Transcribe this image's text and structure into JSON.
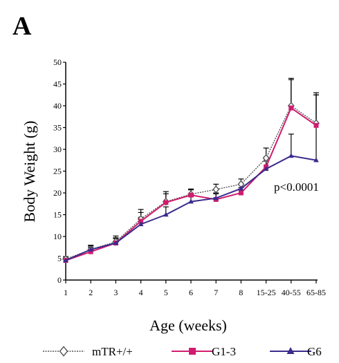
{
  "panel_label": "A",
  "colors": {
    "mTR": "#555555",
    "G13": "#d01c6e",
    "G6": "#3a2b8c",
    "axis": "#000000",
    "error": "#000000"
  },
  "chart_data": {
    "type": "line",
    "title": "",
    "xlabel": "Age (weeks)",
    "ylabel": "Body Weight (g)",
    "categories": [
      "1",
      "2",
      "3",
      "4",
      "5",
      "6",
      "7",
      "8",
      "15-25",
      "40-55",
      "65-85"
    ],
    "ylim": [
      0,
      50
    ],
    "yticks": [
      0,
      5,
      10,
      15,
      20,
      25,
      30,
      35,
      40,
      45,
      50
    ],
    "grid": false,
    "legend_position": "bottom",
    "annotation": "p<0.0001",
    "series": [
      {
        "name": "mTR+/+",
        "marker": "diamond",
        "color_key": "mTR",
        "values": [
          4.8,
          7.0,
          8.8,
          14.0,
          18.0,
          19.7,
          20.8,
          22.0,
          28.0,
          40.0,
          36.0
        ],
        "err": [
          0.6,
          1.0,
          1.3,
          2.2,
          2.3,
          1.2,
          1.2,
          1.2,
          2.3,
          6.3,
          7.0
        ]
      },
      {
        "name": "G1-3",
        "marker": "square",
        "color_key": "G13",
        "values": [
          4.5,
          6.5,
          8.5,
          13.5,
          17.8,
          19.5,
          18.5,
          20.0,
          26.0,
          39.5,
          35.5
        ],
        "err": [
          0.6,
          1.0,
          1.2,
          2.0,
          2.0,
          1.2,
          1.3,
          1.2,
          2.2,
          6.5,
          7.0
        ]
      },
      {
        "name": "G6",
        "marker": "triangle",
        "color_key": "G6",
        "values": [
          4.5,
          7.0,
          8.5,
          12.8,
          15.0,
          18.0,
          18.8,
          21.0,
          25.5,
          28.5,
          27.5
        ],
        "err": [
          0.5,
          0.8,
          1.0,
          1.6,
          1.8,
          1.2,
          1.2,
          1.0,
          1.8,
          5.0,
          15.0
        ]
      }
    ]
  }
}
